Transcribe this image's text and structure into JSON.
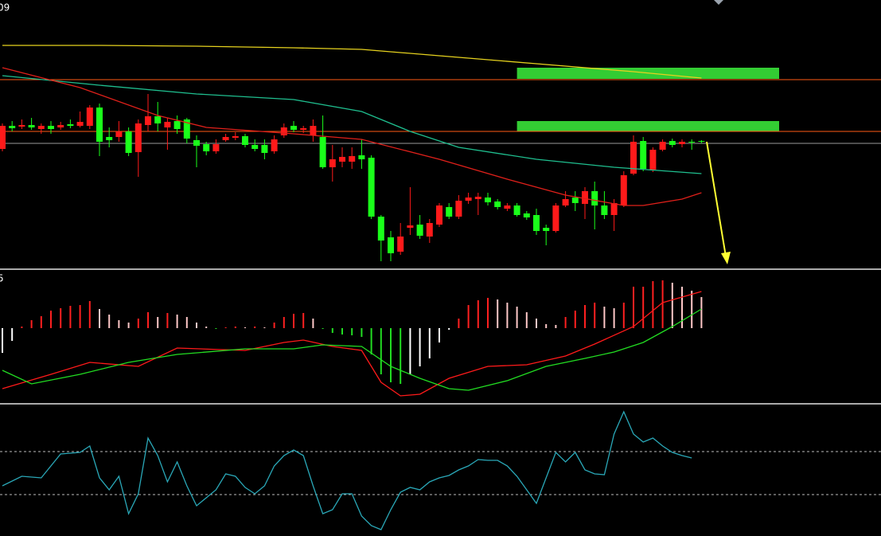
{
  "chart_data": [
    {
      "type": "candlestick",
      "label": "09",
      "ylim": [
        0,
        340
      ],
      "up_color": "#ff1a1a",
      "down_color": "#1aff1a",
      "candles": {
        "open": [
          153,
          182,
          181,
          183,
          178,
          182,
          180,
          184,
          182,
          182,
          205,
          168,
          168,
          175,
          149,
          183,
          194,
          180,
          188,
          190,
          164,
          159,
          150,
          164,
          167,
          169,
          158,
          158,
          150,
          170,
          182,
          177,
          170,
          168,
          130,
          137,
          137,
          145,
          142,
          68,
          42,
          24,
          54,
          58,
          43,
          58,
          80,
          68,
          88,
          90,
          92,
          87,
          78,
          82,
          72,
          70,
          54,
          50,
          82,
          92,
          84,
          100,
          82,
          70,
          82,
          122,
          163,
          127,
          152,
          163,
          159,
          162,
          163
        ],
        "close": [
          182,
          179,
          183,
          180,
          182,
          178,
          183,
          182,
          187,
          205,
          162,
          164,
          175,
          148,
          185,
          194,
          185,
          187,
          178,
          166,
          157,
          150,
          159,
          168,
          169,
          158,
          153,
          148,
          165,
          180,
          177,
          179,
          182,
          130,
          140,
          143,
          144,
          140,
          68,
          38,
          22,
          43,
          57,
          44,
          60,
          82,
          68,
          88,
          92,
          93,
          86,
          80,
          82,
          70,
          67,
          50,
          50,
          82,
          90,
          85,
          100,
          82,
          70,
          85,
          120,
          162,
          128,
          152,
          162,
          158,
          162,
          161,
          162
        ],
        "high": [
          185,
          188,
          190,
          192,
          185,
          188,
          187,
          190,
          200,
          208,
          210,
          180,
          188,
          180,
          190,
          222,
          212,
          192,
          195,
          192,
          170,
          162,
          165,
          172,
          174,
          172,
          165,
          165,
          170,
          185,
          188,
          182,
          190,
          195,
          158,
          155,
          155,
          165,
          145,
          70,
          50,
          60,
          105,
          70,
          65,
          85,
          85,
          95,
          98,
          98,
          98,
          90,
          85,
          85,
          75,
          78,
          58,
          85,
          100,
          100,
          105,
          112,
          100,
          90,
          125,
          170,
          168,
          155,
          165,
          166,
          165,
          165,
          164
        ],
        "low": [
          150,
          175,
          178,
          177,
          172,
          172,
          177,
          179,
          180,
          178,
          144,
          155,
          162,
          144,
          118,
          175,
          175,
          152,
          172,
          160,
          130,
          145,
          147,
          162,
          164,
          155,
          150,
          140,
          147,
          167,
          174,
          173,
          162,
          128,
          112,
          130,
          128,
          128,
          65,
          12,
          12,
          20,
          45,
          40,
          35,
          55,
          65,
          65,
          84,
          70,
          82,
          77,
          75,
          68,
          64,
          45,
          32,
          48,
          80,
          75,
          65,
          52,
          65,
          50,
          80,
          120,
          125,
          124,
          150,
          155,
          155,
          152,
          160
        ]
      },
      "lines": [
        {
          "color": "#e6d21e",
          "x": [
            0,
            10,
            20,
            30,
            37,
            45,
            55,
            65,
            72
          ],
          "values": [
            283,
            283,
            282,
            280,
            278,
            270,
            260,
            250,
            242
          ]
        },
        {
          "color": "#1fbf8f",
          "x": [
            0,
            10,
            20,
            30,
            37,
            42,
            47,
            55,
            63,
            72
          ],
          "values": [
            245,
            233,
            222,
            215,
            200,
            175,
            155,
            140,
            130,
            122
          ]
        },
        {
          "color": "#e0201a",
          "x": [
            0,
            8,
            16,
            21,
            30,
            37,
            45,
            52,
            58,
            64,
            66,
            70,
            72
          ],
          "values": [
            255,
            230,
            195,
            180,
            172,
            165,
            140,
            115,
            95,
            82,
            82,
            90,
            98
          ]
        }
      ],
      "hlines": [
        {
          "value": 240,
          "color": "#ff5a14"
        },
        {
          "value": 175,
          "color": "#ff5a14"
        },
        {
          "value": 160,
          "color": "#9a9a9a"
        }
      ],
      "zones": [
        {
          "x": [
            53,
            80
          ],
          "y": [
            241,
            255
          ],
          "color": "#33cc33"
        },
        {
          "x": [
            53,
            80
          ],
          "y": [
            175,
            188
          ],
          "color": "#33cc33"
        }
      ]
    },
    {
      "type": "combo",
      "label": "5",
      "ylim": [
        -93,
        72
      ],
      "values": [
        -31,
        -16,
        2,
        10,
        15,
        22,
        25,
        28,
        29,
        34,
        24,
        17,
        10,
        7,
        12,
        20,
        14,
        19,
        17,
        14,
        7,
        2,
        -1,
        1,
        2,
        1,
        2,
        1,
        7,
        14,
        18,
        19,
        12,
        -1,
        -6,
        -8,
        -9,
        -11,
        -33,
        -58,
        -68,
        -70,
        -58,
        -48,
        -38,
        -18,
        -2,
        12,
        29,
        35,
        38,
        36,
        32,
        27,
        20,
        12,
        5,
        4,
        14,
        22,
        29,
        32,
        27,
        25,
        32,
        52,
        52,
        59,
        60,
        57,
        52,
        47,
        39
      ],
      "bar_colors": {
        "pos_rising": "#ff2020",
        "pos_falling": "#ffc8c8",
        "neg_falling": "#22dd22",
        "neg_rising": "#ffffff"
      },
      "lines": [
        {
          "color": "#ff1a1a",
          "x": [
            0,
            5,
            9,
            14,
            18,
            25,
            29,
            31,
            34,
            37,
            39,
            41,
            43,
            46,
            50,
            54,
            58,
            61,
            65,
            68,
            72
          ],
          "values": [
            -76,
            -58,
            -43,
            -48,
            -25,
            -28,
            -18,
            -15,
            -23,
            -28,
            -68,
            -85,
            -83,
            -63,
            -48,
            -46,
            -35,
            -20,
            2,
            32,
            46
          ]
        },
        {
          "color": "#22dd22",
          "x": [
            0,
            3,
            8,
            13,
            18,
            25,
            30,
            33,
            37,
            40,
            43,
            46,
            48,
            52,
            56,
            60,
            63,
            66,
            69,
            72
          ],
          "values": [
            -53,
            -70,
            -58,
            -43,
            -33,
            -26,
            -26,
            -21,
            -23,
            -48,
            -63,
            -76,
            -78,
            -66,
            -48,
            -38,
            -30,
            -18,
            2,
            24
          ]
        }
      ]
    },
    {
      "type": "line",
      "ylim": [
        0,
        165
      ],
      "hlines": [
        {
          "value": 106,
          "color": "#bbbbbb",
          "dashed": true
        },
        {
          "value": 52,
          "color": "#bbbbbb",
          "dashed": true
        }
      ],
      "lines": [
        {
          "color": "#2aa8b8",
          "x": [
            0,
            2,
            4,
            6,
            8,
            9,
            10,
            11,
            12,
            13,
            14,
            15,
            16,
            17,
            18,
            19,
            20,
            21,
            22,
            23,
            24,
            25,
            26,
            27,
            28,
            29,
            30,
            31,
            32,
            33,
            34,
            35,
            36,
            37,
            38,
            39,
            40,
            41,
            42,
            43,
            44,
            45,
            46,
            47,
            48,
            49,
            50,
            51,
            52,
            53,
            54,
            55,
            56,
            57,
            58,
            59,
            60,
            61,
            62,
            63,
            64,
            65,
            66,
            67,
            68,
            69,
            70,
            71
          ],
          "values": [
            63,
            75,
            73,
            103,
            105,
            113,
            73,
            58,
            75,
            28,
            53,
            123,
            101,
            68,
            93,
            63,
            38,
            48,
            58,
            78,
            75,
            61,
            53,
            63,
            88,
            101,
            108,
            101,
            63,
            28,
            33,
            53,
            53,
            25,
            13,
            8,
            33,
            55,
            61,
            58,
            68,
            73,
            76,
            83,
            88,
            96,
            95,
            95,
            88,
            75,
            58,
            41,
            73,
            105,
            93,
            105,
            83,
            78,
            77,
            128,
            156,
            128,
            118,
            123,
            113,
            105,
            101,
            98
          ]
        }
      ]
    }
  ]
}
